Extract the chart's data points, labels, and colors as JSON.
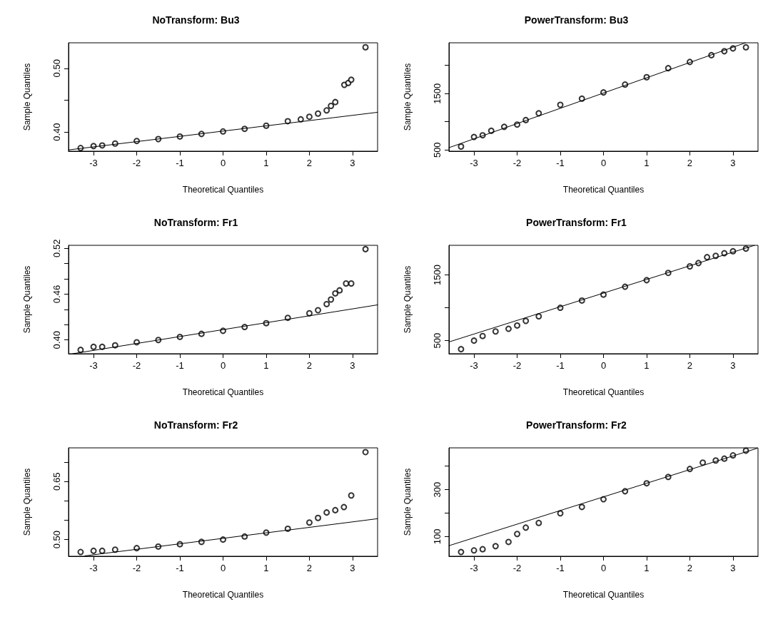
{
  "chart_data": [
    {
      "type": "scatter",
      "title": "NoTransform: Bu3",
      "xlabel": "Theoretical Quantiles",
      "ylabel": "Sample Quantiles",
      "xlim": [
        -3.58,
        3.58
      ],
      "ylim": [
        0.37,
        0.54
      ],
      "xticks": [
        -3,
        -2,
        -1,
        0,
        1,
        2,
        3
      ],
      "yticks": [
        {
          "value": 0.4,
          "label": "0.40"
        },
        {
          "value": 0.45,
          "label": null
        },
        {
          "value": 0.5,
          "label": "0.50"
        }
      ],
      "grid": false,
      "series": [
        {
          "color": "#000000",
          "marker": "circle",
          "x": [
            -3.3,
            -3,
            -2.8,
            -2.5,
            -2,
            -1.5,
            -1,
            -0.5,
            0,
            0.5,
            1,
            1.5,
            1.8,
            2,
            2.2,
            2.4,
            2.5,
            2.6,
            2.81,
            2.9,
            2.97,
            3.3
          ],
          "values": [
            0.375,
            0.378,
            0.379,
            0.382,
            0.386,
            0.389,
            0.393,
            0.397,
            0.401,
            0.405,
            0.41,
            0.417,
            0.42,
            0.424,
            0.429,
            0.434,
            0.441,
            0.447,
            0.474,
            0.477,
            0.482,
            0.533
          ]
        },
        {
          "type": "line",
          "color": "#000000",
          "x": [
            -3.58,
            3.58
          ],
          "values": [
            0.372,
            0.431
          ]
        }
      ]
    },
    {
      "type": "scatter",
      "title": "PowerTransform: Bu3",
      "xlabel": "Theoretical Quantiles",
      "ylabel": "Sample Quantiles",
      "xlim": [
        -3.58,
        3.58
      ],
      "ylim": [
        478,
        2400
      ],
      "xticks": [
        -3,
        -2,
        -1,
        0,
        1,
        2,
        3
      ],
      "yticks": [
        500,
        {
          "value": 1000,
          "label": null
        },
        1500,
        {
          "value": 2000,
          "label": null
        }
      ],
      "grid": false,
      "series": [
        {
          "color": "#000000",
          "marker": "circle",
          "x": [
            -3.3,
            -3,
            -2.8,
            -2.6,
            -2.3,
            -2,
            -1.8,
            -1.5,
            -1,
            -0.5,
            0,
            0.5,
            1,
            1.5,
            2,
            2.5,
            2.8,
            3,
            3.3
          ],
          "values": [
            560,
            730,
            760,
            840,
            910,
            950,
            1030,
            1150,
            1300,
            1410,
            1520,
            1660,
            1790,
            1950,
            2060,
            2180,
            2250,
            2300,
            2320
          ]
        },
        {
          "type": "line",
          "color": "#000000",
          "x": [
            -3.58,
            3.29
          ],
          "values": [
            540,
            2400
          ]
        }
      ]
    },
    {
      "type": "scatter",
      "title": "NoTransform: Fr1",
      "xlabel": "Theoretical Quantiles",
      "ylabel": "Sample Quantiles",
      "xlim": [
        -3.58,
        3.58
      ],
      "ylim": [
        0.382,
        0.524
      ],
      "xticks": [
        -3,
        -2,
        -1,
        0,
        1,
        2,
        3
      ],
      "yticks": [
        {
          "value": 0.4,
          "label": "0.40"
        },
        {
          "value": 0.42,
          "label": null
        },
        {
          "value": 0.44,
          "label": null
        },
        {
          "value": 0.46,
          "label": "0.46"
        },
        {
          "value": 0.48,
          "label": null
        },
        {
          "value": 0.5,
          "label": null
        },
        {
          "value": 0.52,
          "label": "0.52"
        }
      ],
      "grid": false,
      "series": [
        {
          "color": "#000000",
          "marker": "circle",
          "x": [
            -3.3,
            -3,
            -2.8,
            -2.5,
            -2,
            -1.5,
            -1,
            -0.5,
            0,
            0.5,
            1,
            1.5,
            2,
            2.2,
            2.4,
            2.5,
            2.6,
            2.7,
            2.85,
            2.97,
            3.3
          ],
          "values": [
            0.387,
            0.391,
            0.391,
            0.393,
            0.397,
            0.4,
            0.404,
            0.408,
            0.412,
            0.417,
            0.422,
            0.429,
            0.435,
            0.439,
            0.447,
            0.453,
            0.461,
            0.465,
            0.474,
            0.474,
            0.519
          ]
        },
        {
          "type": "line",
          "color": "#000000",
          "x": [
            -3.48,
            3.58
          ],
          "values": [
            0.382,
            0.446
          ]
        }
      ]
    },
    {
      "type": "scatter",
      "title": "PowerTransform: Fr1",
      "xlabel": "Theoretical Quantiles",
      "ylabel": "Sample Quantiles",
      "xlim": [
        -3.58,
        3.58
      ],
      "ylim": [
        301,
        1950
      ],
      "xticks": [
        -3,
        -2,
        -1,
        0,
        1,
        2,
        3
      ],
      "yticks": [
        500,
        {
          "value": 1000,
          "label": null
        },
        1500
      ],
      "grid": false,
      "series": [
        {
          "color": "#000000",
          "marker": "circle",
          "x": [
            -3.3,
            -3,
            -2.8,
            -2.5,
            -2.2,
            -2,
            -1.8,
            -1.5,
            -1,
            -0.5,
            0,
            0.5,
            1,
            1.5,
            2,
            2.2,
            2.4,
            2.6,
            2.8,
            3,
            3.3
          ],
          "values": [
            370,
            500,
            570,
            640,
            680,
            730,
            800,
            870,
            1000,
            1110,
            1200,
            1320,
            1420,
            1530,
            1630,
            1680,
            1770,
            1790,
            1830,
            1860,
            1900
          ]
        },
        {
          "type": "line",
          "color": "#000000",
          "x": [
            -3.58,
            3.5
          ],
          "values": [
            480,
            1950
          ]
        }
      ]
    },
    {
      "type": "scatter",
      "title": "NoTransform: Fr2",
      "xlabel": "Theoretical Quantiles",
      "ylabel": "Sample Quantiles",
      "xlim": [
        -3.58,
        3.58
      ],
      "ylim": [
        0.457,
        0.737
      ],
      "xticks": [
        -3,
        -2,
        -1,
        0,
        1,
        2,
        3
      ],
      "yticks": [
        {
          "value": 0.5,
          "label": "0.50"
        },
        {
          "value": 0.55,
          "label": null
        },
        {
          "value": 0.6,
          "label": null
        },
        {
          "value": 0.65,
          "label": "0.65"
        },
        {
          "value": 0.7,
          "label": null
        }
      ],
      "grid": false,
      "series": [
        {
          "color": "#000000",
          "marker": "circle",
          "x": [
            -3.3,
            -3,
            -2.8,
            -2.5,
            -2,
            -1.5,
            -1,
            -0.5,
            0,
            0.5,
            1,
            1.5,
            2,
            2.2,
            2.4,
            2.6,
            2.8,
            2.97,
            3.3
          ],
          "values": [
            0.468,
            0.471,
            0.471,
            0.474,
            0.478,
            0.482,
            0.488,
            0.494,
            0.5,
            0.508,
            0.518,
            0.528,
            0.544,
            0.556,
            0.57,
            0.576,
            0.584,
            0.614,
            0.726
          ]
        },
        {
          "type": "line",
          "color": "#000000",
          "x": [
            -3.2,
            3.58
          ],
          "values": [
            0.458,
            0.554
          ]
        }
      ]
    },
    {
      "type": "scatter",
      "title": "PowerTransform: Fr2",
      "xlabel": "Theoretical Quantiles",
      "ylabel": "Sample Quantiles",
      "xlim": [
        -3.58,
        3.58
      ],
      "ylim": [
        16,
        478
      ],
      "xticks": [
        -3,
        -2,
        -1,
        0,
        1,
        2,
        3
      ],
      "yticks": [
        100,
        {
          "value": 200,
          "label": null
        },
        300,
        {
          "value": 400,
          "label": null
        }
      ],
      "grid": false,
      "series": [
        {
          "color": "#000000",
          "marker": "circle",
          "x": [
            -3.3,
            -3,
            -2.8,
            -2.5,
            -2.2,
            -2,
            -1.8,
            -1.5,
            -1,
            -0.5,
            0,
            0.5,
            1,
            1.5,
            2,
            2.3,
            2.6,
            2.8,
            3,
            3.3
          ],
          "values": [
            34,
            41,
            46,
            59,
            77,
            111,
            138,
            158,
            199,
            226,
            259,
            293,
            327,
            354,
            388,
            415,
            424,
            432,
            446,
            466
          ]
        },
        {
          "type": "line",
          "color": "#000000",
          "x": [
            -3.58,
            3.56
          ],
          "values": [
            61,
            476
          ]
        }
      ]
    }
  ]
}
